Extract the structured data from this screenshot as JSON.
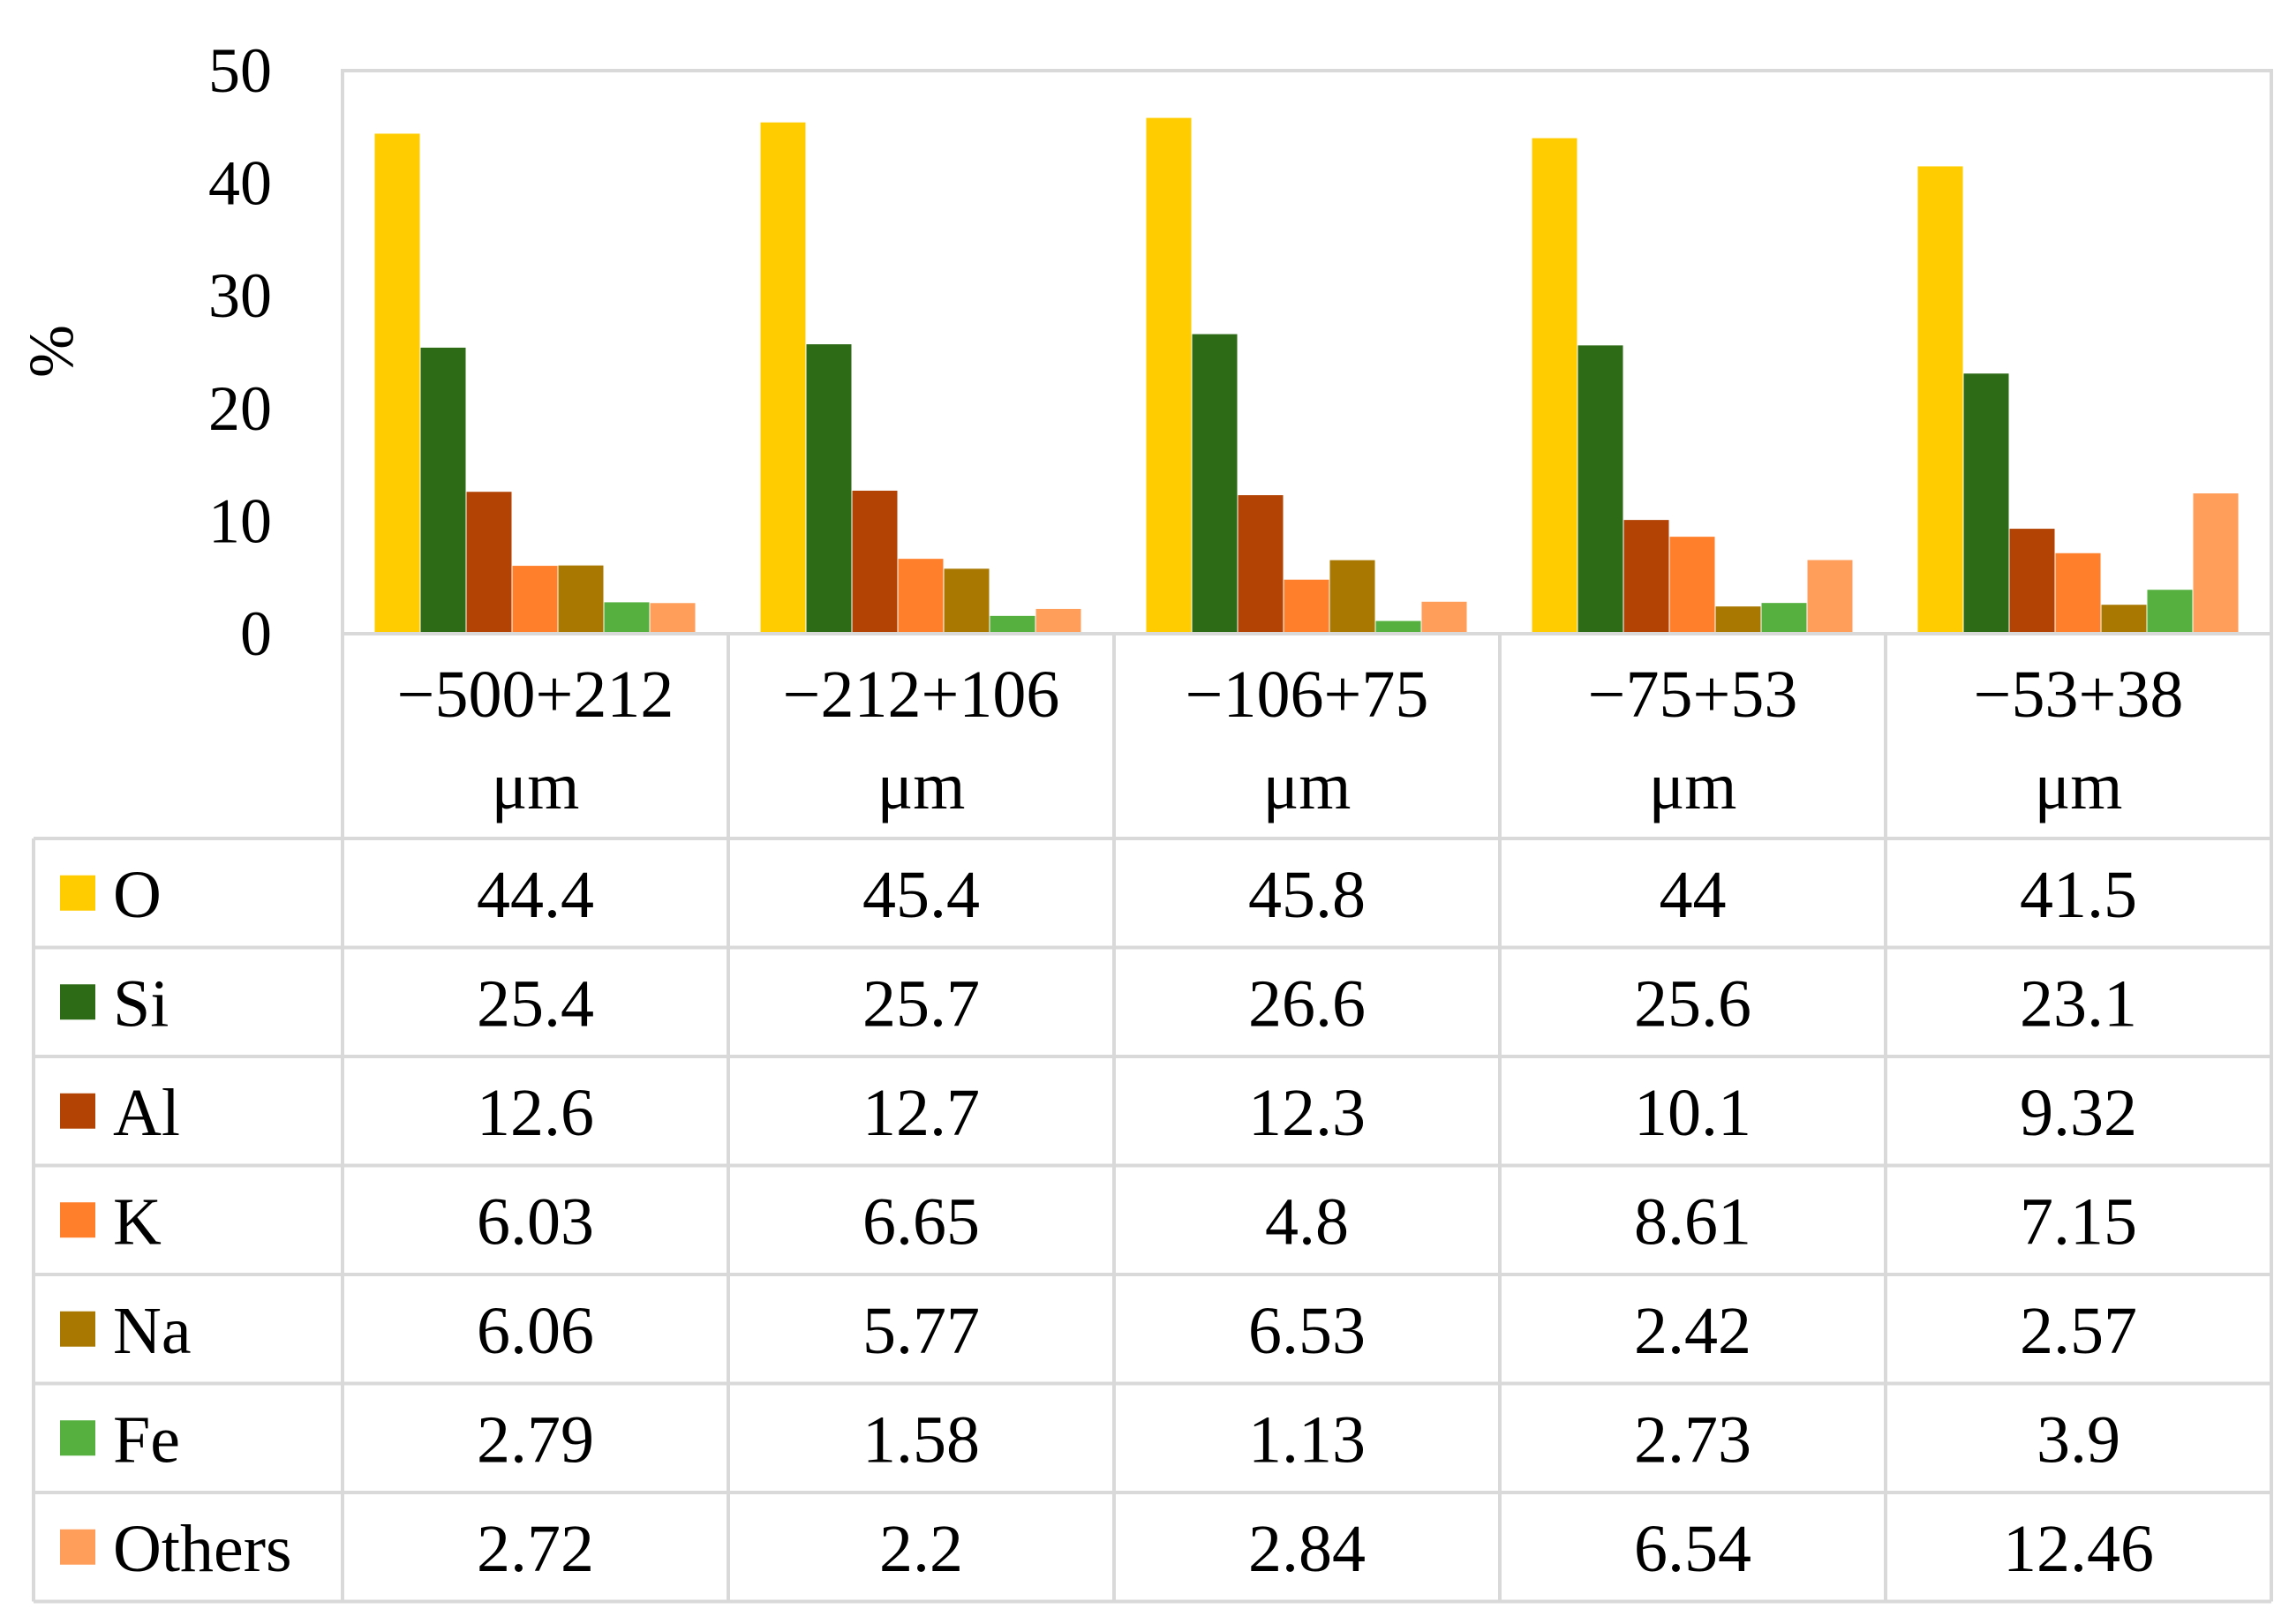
{
  "chart_data": {
    "type": "bar",
    "ylabel": "%",
    "ylim": [
      0,
      50
    ],
    "yticks": [
      "0",
      "10",
      "20",
      "30",
      "40",
      "50"
    ],
    "categories": [
      [
        "−500+212",
        "μm"
      ],
      [
        "−212+106",
        "μm"
      ],
      [
        "−106+75",
        "μm"
      ],
      [
        "−75+53",
        "μm"
      ],
      [
        "−53+38",
        "μm"
      ]
    ],
    "series": [
      {
        "name": "O",
        "color": "#ffcc00",
        "values": [
          44.4,
          45.4,
          45.8,
          44,
          41.5
        ],
        "labels": [
          "44.4",
          "45.4",
          "45.8",
          "44",
          "41.5"
        ]
      },
      {
        "name": "Si",
        "color": "#2e6b16",
        "values": [
          25.4,
          25.7,
          26.6,
          25.6,
          23.1
        ],
        "labels": [
          "25.4",
          "25.7",
          "26.6",
          "25.6",
          "23.1"
        ]
      },
      {
        "name": "Al",
        "color": "#b24304",
        "values": [
          12.6,
          12.7,
          12.3,
          10.1,
          9.32
        ],
        "labels": [
          "12.6",
          "12.7",
          "12.3",
          "10.1",
          "9.32"
        ]
      },
      {
        "name": "K",
        "color": "#ff7f2a",
        "values": [
          6.03,
          6.65,
          4.8,
          8.61,
          7.15
        ],
        "labels": [
          "6.03",
          "6.65",
          "4.8",
          "8.61",
          "7.15"
        ]
      },
      {
        "name": "Na",
        "color": "#a87800",
        "values": [
          6.06,
          5.77,
          6.53,
          2.42,
          2.57
        ],
        "labels": [
          "6.06",
          "5.77",
          "6.53",
          "2.42",
          "2.57"
        ]
      },
      {
        "name": "Fe",
        "color": "#55b040",
        "values": [
          2.79,
          1.58,
          1.13,
          2.73,
          3.9
        ],
        "labels": [
          "2.79",
          "1.58",
          "1.13",
          "2.73",
          "3.9"
        ]
      },
      {
        "name": "Others",
        "color": "#ff9e5a",
        "values": [
          2.72,
          2.2,
          2.84,
          6.54,
          12.46
        ],
        "labels": [
          "2.72",
          "2.2",
          "2.84",
          "6.54",
          "12.46"
        ]
      }
    ],
    "legend": "data-table",
    "grid": false
  }
}
